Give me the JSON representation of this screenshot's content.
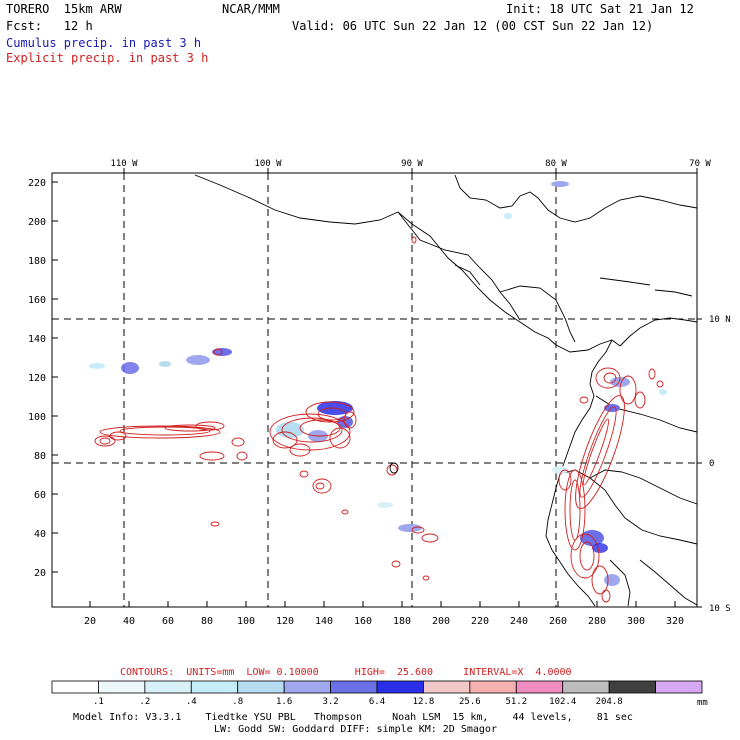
{
  "header": {
    "model": "TORERO  15km ARW",
    "org": "NCAR/MMM",
    "init": "Init: 18 UTC Sat 21 Jan 12",
    "fcst": "Fcst:   12 h",
    "valid": "Valid: 06 UTC Sun 22 Jan 12 (00 CST Sun 22 Jan 12)",
    "cumulus": "Cumulus precip. in past 3 h",
    "explicit": "Explicit precip. in past 3 h"
  },
  "map": {
    "lon_labels": [
      "110 W",
      "100 W",
      "90 W",
      "80 W",
      "70 W"
    ],
    "lat_labels": [
      "10 N",
      "0",
      "10 S"
    ],
    "y_ticks": [
      "220",
      "200",
      "180",
      "160",
      "140",
      "120",
      "100",
      "80",
      "60",
      "40",
      "20"
    ],
    "x_ticks": [
      "20",
      "40",
      "60",
      "80",
      "100",
      "120",
      "140",
      "160",
      "180",
      "200",
      "220",
      "240",
      "260",
      "280",
      "300",
      "320"
    ]
  },
  "contour_info": {
    "label": "CONTOURS:  UNITS=mm  LOW= 0.10000      HIGH=  25.600     INTERVAL=X  4.0000"
  },
  "colorbar": {
    "colors": [
      "#ffffff",
      "#eef8fb",
      "#d8f0f7",
      "#c6ecf7",
      "#b6dcf0",
      "#9fa8ee",
      "#6b6fe8",
      "#2a2ee6",
      "#f0c8c8",
      "#f5b0b0",
      "#f08cc0",
      "#bcbcbc",
      "#404040",
      "#d7a8f2"
    ],
    "labels": [
      ".1",
      ".2",
      ".4",
      ".8",
      "1.6",
      "3.2",
      "6.4",
      "12.8",
      "25.6",
      "51.2",
      "102.4",
      "204.8"
    ],
    "units": "mm"
  },
  "footer": {
    "line1": "Model Info: V3.3.1    Tiedtke YSU PBL   Thompson     Noah LSM  15 km,    44 levels,    81 sec",
    "line2": "LW: Godd SW: Goddard DIFF: simple KM: 2D Smagor"
  }
}
